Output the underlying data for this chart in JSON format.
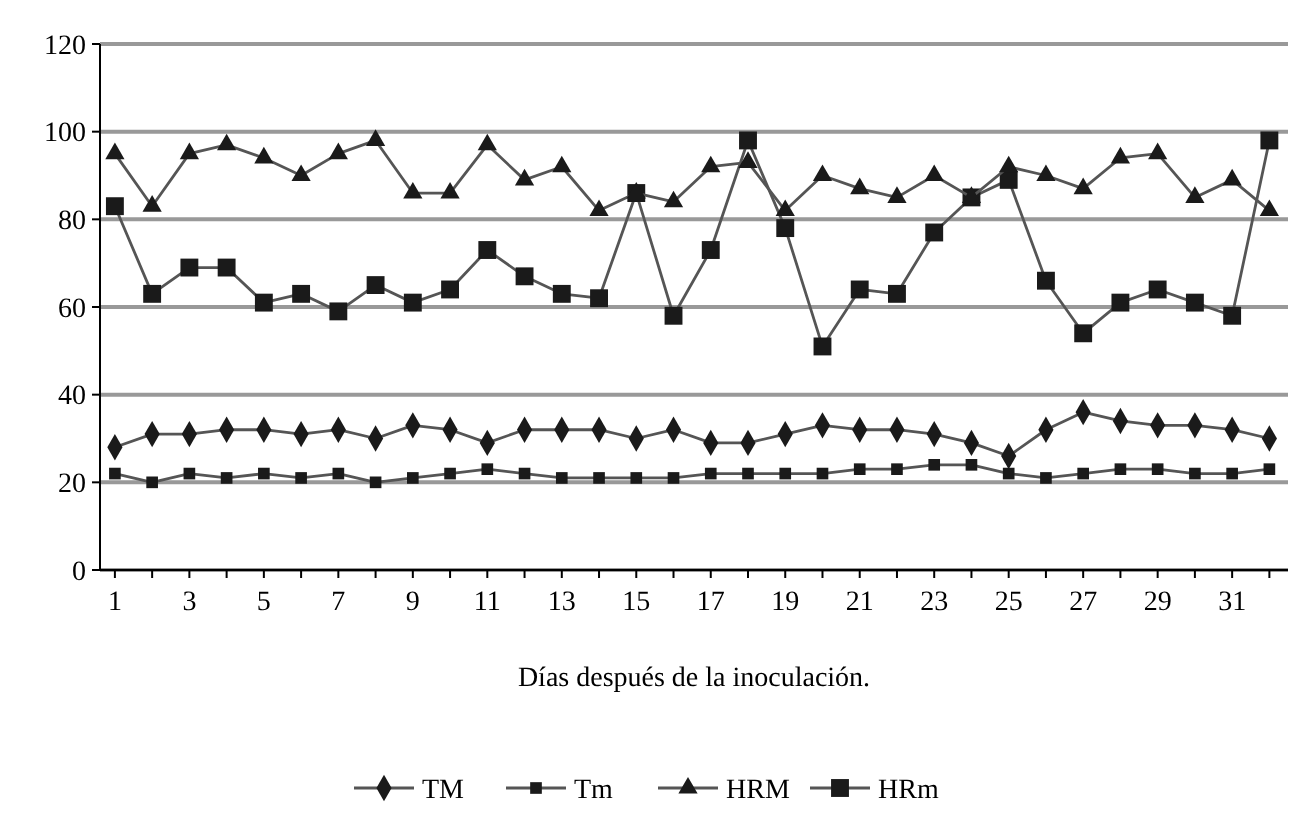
{
  "chart_data": {
    "type": "line",
    "xlabel": "Días después de la inoculación.",
    "x": [
      1,
      2,
      3,
      4,
      5,
      6,
      7,
      8,
      9,
      10,
      11,
      12,
      13,
      14,
      15,
      16,
      17,
      18,
      19,
      20,
      21,
      22,
      23,
      24,
      25,
      26,
      27,
      28,
      29,
      30,
      31,
      32
    ],
    "xlim": [
      0.6,
      32.5
    ],
    "xticks": [
      1,
      {
        "value": 2,
        "label": null
      },
      3,
      {
        "value": 4,
        "label": null
      },
      5,
      {
        "value": 6,
        "label": null
      },
      7,
      {
        "value": 8,
        "label": null
      },
      9,
      {
        "value": 10,
        "label": null
      },
      11,
      {
        "value": 12,
        "label": null
      },
      13,
      {
        "value": 14,
        "label": null
      },
      15,
      {
        "value": 16,
        "label": null
      },
      17,
      {
        "value": 18,
        "label": null
      },
      19,
      {
        "value": 20,
        "label": null
      },
      21,
      {
        "value": 22,
        "label": null
      },
      23,
      {
        "value": 24,
        "label": null
      },
      25,
      {
        "value": 26,
        "label": null
      },
      27,
      {
        "value": 28,
        "label": null
      },
      29,
      {
        "value": 30,
        "label": null
      },
      31,
      {
        "value": 32,
        "label": null
      }
    ],
    "series": [
      {
        "name": "TM",
        "color": "#1a1a1a",
        "marker": "diamond",
        "values": [
          28,
          31,
          31,
          32,
          32,
          31,
          32,
          30,
          33,
          32,
          29,
          32,
          32,
          32,
          30,
          32,
          29,
          29,
          31,
          33,
          32,
          32,
          31,
          29,
          26,
          32,
          36,
          34,
          33,
          33,
          32,
          30
        ]
      },
      {
        "name": "Tm",
        "color": "#1a1a1a",
        "marker": "square",
        "values": [
          22,
          20,
          22,
          21,
          22,
          21,
          22,
          20,
          21,
          22,
          23,
          22,
          21,
          21,
          21,
          21,
          22,
          22,
          22,
          22,
          23,
          23,
          24,
          24,
          22,
          21,
          22,
          23,
          23,
          22,
          22,
          23
        ]
      },
      {
        "name": "HRM",
        "color": "#1a1a1a",
        "marker": "triangle",
        "values": [
          95,
          83,
          95,
          97,
          94,
          90,
          95,
          98,
          86,
          86,
          97,
          89,
          92,
          82,
          86,
          84,
          92,
          93,
          82,
          90,
          87,
          85,
          90,
          85,
          92,
          90,
          87,
          94,
          95,
          85,
          89,
          82
        ]
      },
      {
        "name": "HRm",
        "color": "#1a1a1a",
        "marker": "square",
        "values": [
          83,
          63,
          69,
          69,
          61,
          63,
          59,
          65,
          61,
          64,
          73,
          67,
          63,
          62,
          86,
          58,
          73,
          98,
          78,
          51,
          64,
          63,
          77,
          85,
          89,
          66,
          54,
          61,
          64,
          61,
          58,
          98
        ]
      }
    ],
    "ylim": [
      0,
      120
    ],
    "yticks": [
      0,
      20,
      40,
      60,
      80,
      100,
      120
    ],
    "grid": "y",
    "legend": "bottom"
  }
}
